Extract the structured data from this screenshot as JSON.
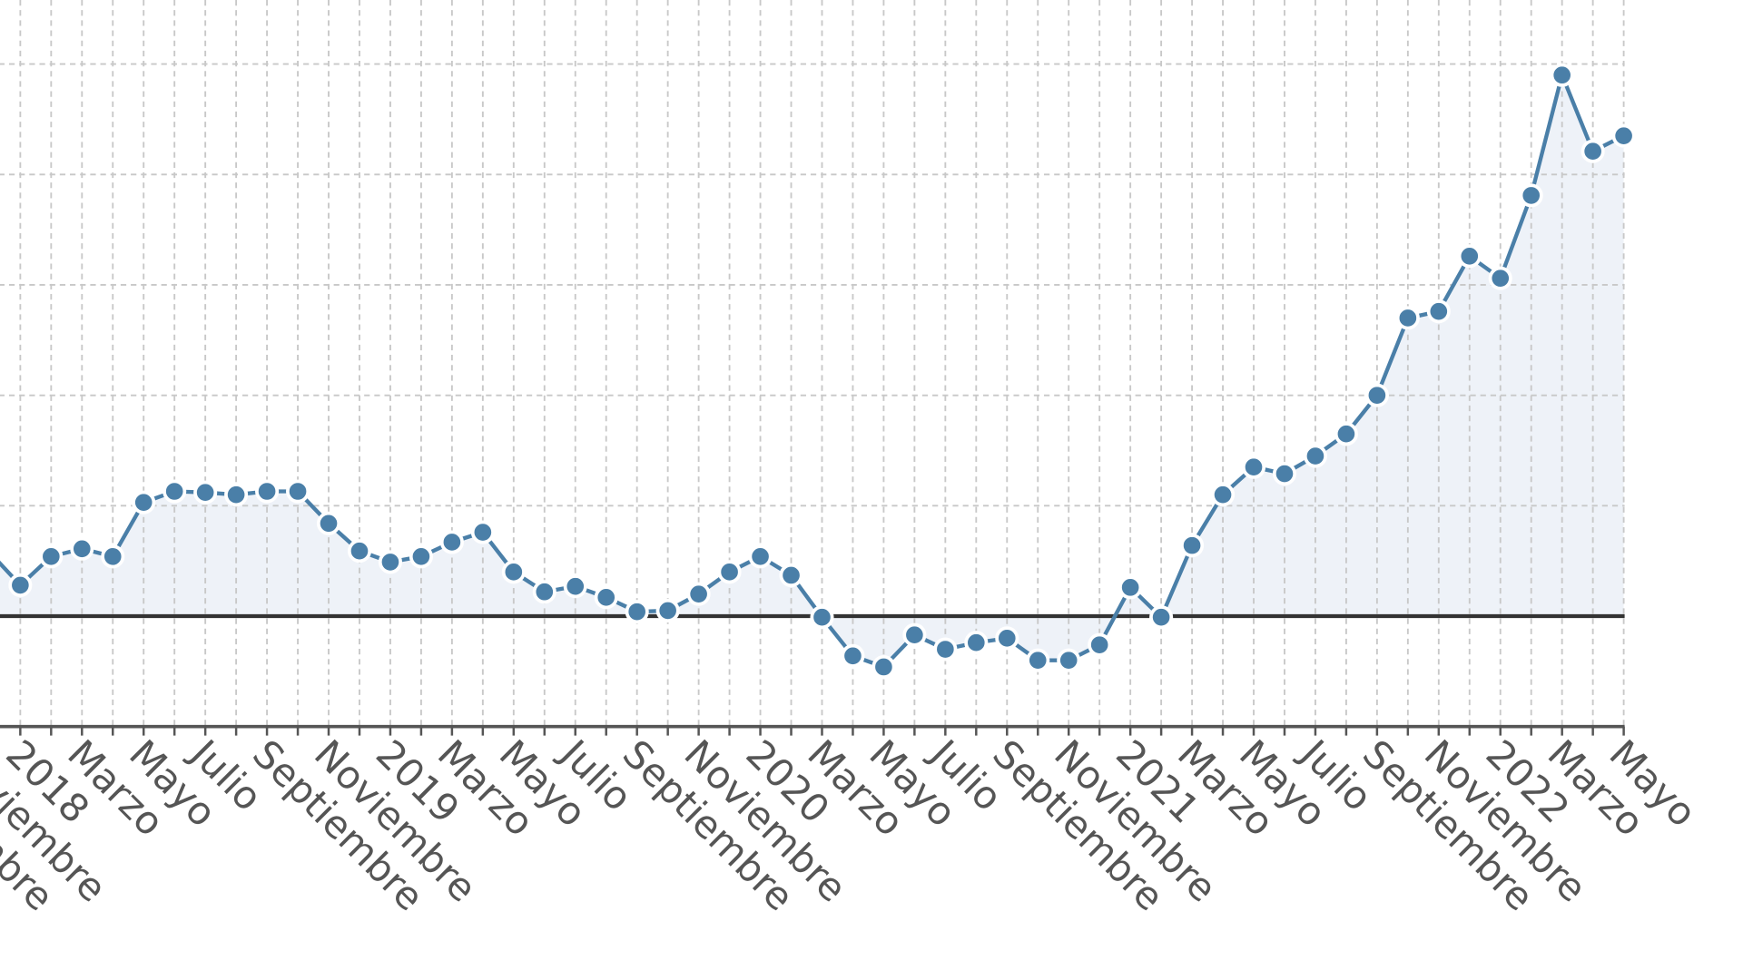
{
  "chart_data": {
    "type": "line",
    "categories": [
      "Septiembre",
      null,
      "Noviembre",
      null,
      "2018",
      null,
      "Marzo",
      null,
      "Mayo",
      null,
      "Julio",
      null,
      "Septiembre",
      null,
      "Noviembre",
      null,
      "2019",
      null,
      "Marzo",
      null,
      "Mayo",
      null,
      "Julio",
      null,
      "Septiembre",
      null,
      "Noviembre",
      null,
      "2020",
      null,
      "Marzo",
      null,
      "Mayo",
      null,
      "Julio",
      null,
      "Septiembre",
      null,
      "Noviembre",
      null,
      "2021",
      null,
      "Marzo",
      null,
      "Mayo",
      null,
      "Julio",
      null,
      "Septiembre",
      null,
      "Noviembre",
      null,
      "2022",
      null,
      "Marzo",
      null,
      "Mayo"
    ],
    "series": [
      {
        "color": "#4a7fa8",
        "values": [
          null,
          null,
          null,
          0.58,
          0.28,
          0.54,
          0.61,
          0.54,
          1.03,
          1.13,
          1.12,
          1.1,
          1.13,
          1.13,
          0.84,
          0.59,
          0.49,
          0.54,
          0.67,
          0.76,
          0.4,
          0.22,
          0.27,
          0.17,
          0.04,
          0.05,
          0.2,
          0.4,
          0.54,
          0.37,
          -0.01,
          -0.36,
          -0.46,
          -0.17,
          -0.3,
          -0.24,
          -0.2,
          -0.4,
          -0.4,
          -0.26,
          0.26,
          -0.01,
          0.64,
          1.1,
          1.35,
          1.29,
          1.45,
          1.65,
          2.0,
          2.7,
          2.76,
          3.26,
          3.06,
          3.81,
          4.9,
          4.21,
          4.35
        ]
      }
    ],
    "ylim": [
      -1,
      5.58
    ],
    "yticks": [
      -1,
      0,
      1,
      2,
      3,
      4,
      5
    ],
    "grid": true,
    "fill_area": true,
    "zero_line": true
  }
}
